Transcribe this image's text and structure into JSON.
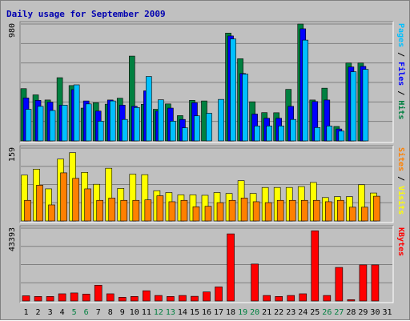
{
  "chart_data": {
    "type": "bar",
    "title": "Daily usage for September 2009",
    "days": [
      "1",
      "2",
      "3",
      "4",
      "5",
      "6",
      "7",
      "8",
      "9",
      "10",
      "11",
      "12",
      "13",
      "14",
      "15",
      "16",
      "17",
      "18",
      "19",
      "20",
      "21",
      "22",
      "23",
      "24",
      "25",
      "26",
      "27",
      "28",
      "29",
      "30",
      "31"
    ],
    "weekend_days": [
      "5",
      "6",
      "12",
      "13",
      "19",
      "20",
      "26",
      "27"
    ],
    "colors": {
      "hits": "#008040",
      "files": "#0000ff",
      "pages": "#00c0ff",
      "visits": "#ffff00",
      "sites": "#ff8000",
      "kbytes": "#ff0000",
      "weekend_label": "#008040",
      "weekday_label": "#000000",
      "title": "#0000b0"
    },
    "panels": [
      {
        "id": "hits_files_pages",
        "ymax": 980,
        "ymax_label": "980",
        "legend": [
          {
            "text": "Hits",
            "color": "#008040"
          },
          {
            "text": "Files",
            "color": "#0000ff"
          },
          {
            "text": "Pages",
            "color": "#00c0ff"
          }
        ],
        "series": [
          {
            "name": "Hits",
            "color": "#008040",
            "values": [
              438,
              386,
              343,
              530,
              464,
              275,
              320,
              308,
              358,
              711,
              307,
              265,
              310,
              212,
              340,
              335,
              0,
              904,
              689,
              328,
              237,
              236,
              432,
              980,
              343,
              442,
              121,
              653,
              653,
              0,
              0
            ]
          },
          {
            "name": "Files",
            "color": "#0000ff",
            "values": [
              360,
              340,
              325,
              300,
              430,
              335,
              250,
              343,
              300,
              290,
              420,
              250,
              275,
              180,
              320,
              0,
              0,
              880,
              565,
              225,
              190,
              190,
              290,
              940,
              330,
              343,
              100,
              620,
              625,
              0,
              0
            ]
          },
          {
            "name": "Pages",
            "color": "#00c0ff",
            "values": [
              265,
              290,
              255,
              300,
              470,
              310,
              165,
              335,
              180,
              280,
              540,
              345,
              165,
              110,
              210,
              232,
              348,
              855,
              560,
              125,
              125,
              125,
              180,
              845,
              112,
              125,
              82,
              580,
              600,
              0,
              0
            ]
          }
        ]
      },
      {
        "id": "visits_sites",
        "ymax": 159,
        "ymax_label": "159",
        "legend": [
          {
            "text": "Visits",
            "color": "#ffff00"
          },
          {
            "text": "Sites",
            "color": "#ff8000"
          }
        ],
        "series": [
          {
            "name": "Visits",
            "color": "#ffff00",
            "values": [
              100,
              113,
              70,
              135,
              149,
              106,
              80,
              115,
              71,
              102,
              101,
              66,
              62,
              57,
              57,
              56,
              62,
              60,
              88,
              60,
              73,
              73,
              73,
              75,
              84,
              51,
              53,
              53,
              79,
              61,
              0
            ]
          },
          {
            "name": "Sites",
            "color": "#ff8000",
            "values": [
              45,
              78,
              35,
              105,
              93,
              70,
              45,
              50,
              45,
              45,
              46,
              55,
              42,
              45,
              31,
              32,
              40,
              45,
              50,
              42,
              40,
              45,
              45,
              45,
              45,
              42,
              45,
              30,
              30,
              54,
              0
            ]
          }
        ]
      },
      {
        "id": "kbytes",
        "ymax": 43393,
        "ymax_label": "43393",
        "legend": [
          {
            "text": "KBytes",
            "color": "#ff0000"
          }
        ],
        "series": [
          {
            "name": "KBytes",
            "color": "#ff0000",
            "values": [
              3100,
              2700,
              2700,
              4300,
              4800,
              4100,
              9400,
              4300,
              2200,
              2700,
              6100,
              3300,
              2700,
              3300,
              2800,
              5400,
              8400,
              40000,
              0,
              22000,
              3300,
              2700,
              3300,
              4300,
              41800,
              3300,
              20000,
              800,
              21500,
              21500,
              0
            ]
          }
        ]
      }
    ]
  }
}
